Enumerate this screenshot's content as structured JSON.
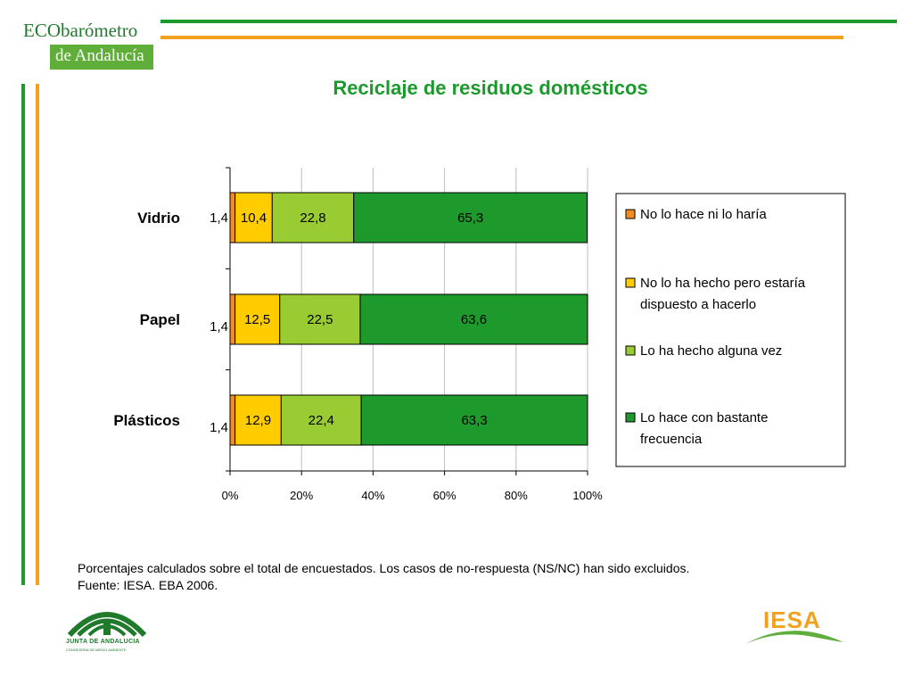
{
  "header": {
    "logo_line1": "ECObarómetro",
    "logo_line2": "de Andalucía"
  },
  "colors": {
    "green_rule": "#1e9a2c",
    "orange_rule": "#f2a11f",
    "title_green": "#199a2a"
  },
  "chart_data": {
    "type": "bar",
    "orientation": "horizontal",
    "stacked": "percent",
    "title": "Reciclaje de residuos domésticos",
    "categories": [
      "Vidrio",
      "Papel",
      "Plásticos"
    ],
    "series": [
      {
        "name": "No lo hace ni lo haría",
        "color": "#f28c1c",
        "values": [
          1.4,
          1.4,
          1.4
        ]
      },
      {
        "name": "No lo ha hecho pero estaría dispuesto a hacerlo",
        "color": "#ffcc00",
        "values": [
          10.4,
          12.5,
          12.9
        ]
      },
      {
        "name": "Lo ha hecho alguna vez",
        "color": "#99cc33",
        "values": [
          22.8,
          22.5,
          22.4
        ]
      },
      {
        "name": "Lo hace con bastante frecuencia",
        "color": "#1e9a2c",
        "values": [
          65.3,
          63.6,
          63.3
        ]
      }
    ],
    "value_labels": [
      [
        "1,4",
        "10,4",
        "22,8",
        "65,3"
      ],
      [
        "1,4",
        "12,5",
        "22,5",
        "63,6"
      ],
      [
        "1,4",
        "12,9",
        "22,4",
        "63,3"
      ]
    ],
    "x_ticks": [
      "0%",
      "20%",
      "40%",
      "60%",
      "80%",
      "100%"
    ],
    "xlim": [
      0,
      100
    ],
    "grid": "vertical",
    "legend": "right"
  },
  "footnote": {
    "line1": "Porcentajes calculados sobre el total de encuestados. Los casos de no-respuesta (NS/NC) han sido excluidos.",
    "line2": "Fuente: IESA. EBA 2006."
  },
  "footer": {
    "junta_name": "JUNTA DE ANDALUCIA",
    "junta_sub": "CONSEJERIA DE MEDIO AMBIENTE",
    "iesa_label": "IESA"
  }
}
